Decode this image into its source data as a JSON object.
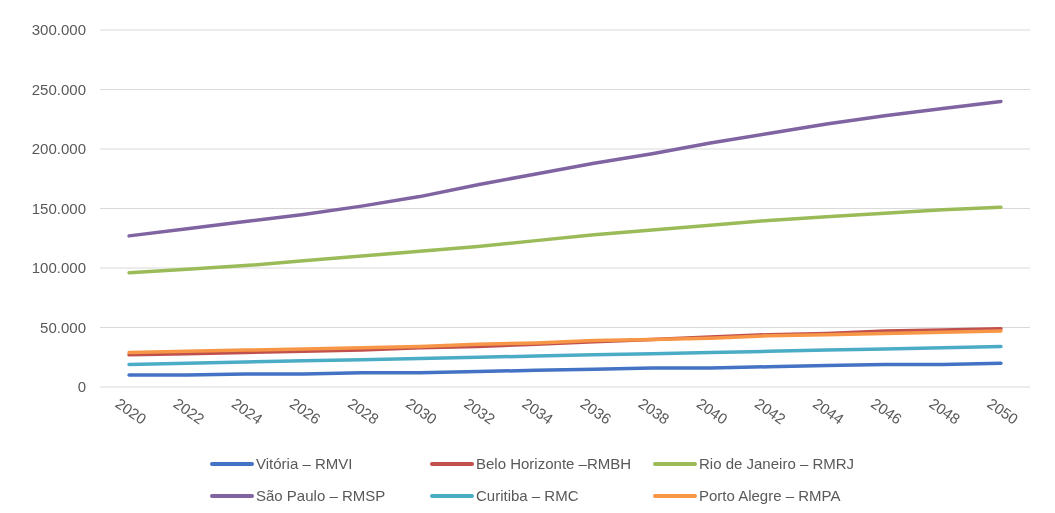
{
  "chart_data": {
    "type": "line",
    "x": [
      2020,
      2022,
      2024,
      2026,
      2028,
      2030,
      2032,
      2034,
      2036,
      2038,
      2040,
      2042,
      2044,
      2046,
      2048,
      2050
    ],
    "series": [
      {
        "name": "Vitória – RMVI",
        "color": "#4472c4",
        "values": [
          10000,
          10000,
          11000,
          11000,
          12000,
          12000,
          13000,
          14000,
          15000,
          16000,
          16000,
          17000,
          18000,
          19000,
          19000,
          20000
        ]
      },
      {
        "name": "Belo Horizonte –RMBH",
        "color": "#c0504d",
        "values": [
          27000,
          28000,
          29000,
          30000,
          31000,
          33000,
          34000,
          36000,
          38000,
          40000,
          42000,
          44000,
          45000,
          47000,
          48000,
          49000
        ]
      },
      {
        "name": "Rio de Janeiro – RMRJ",
        "color": "#9bbb59",
        "values": [
          96000,
          99000,
          102000,
          106000,
          110000,
          114000,
          118000,
          123000,
          128000,
          132000,
          136000,
          140000,
          143000,
          146000,
          149000,
          151000
        ]
      },
      {
        "name": "São Paulo – RMSP",
        "color": "#8064a2",
        "values": [
          127000,
          133000,
          139000,
          145000,
          152000,
          160000,
          170000,
          179000,
          188000,
          196000,
          205000,
          213000,
          221000,
          228000,
          234000,
          240000
        ]
      },
      {
        "name": "Curitiba – RMC",
        "color": "#4bacc6",
        "values": [
          19000,
          20000,
          21000,
          22000,
          23000,
          24000,
          25000,
          26000,
          27000,
          28000,
          29000,
          30000,
          31000,
          32000,
          33000,
          34000
        ]
      },
      {
        "name": "Porto Alegre – RMPA",
        "color": "#f79646",
        "values": [
          29000,
          30000,
          31000,
          32000,
          33000,
          34000,
          36000,
          37000,
          39000,
          40000,
          41000,
          43000,
          44000,
          45000,
          46000,
          47000
        ]
      }
    ],
    "xlim": [
      2019,
      2051
    ],
    "xticks": [
      2020,
      2022,
      2024,
      2026,
      2028,
      2030,
      2032,
      2034,
      2036,
      2038,
      2040,
      2042,
      2044,
      2046,
      2048,
      2050
    ],
    "ylim": [
      0,
      300000
    ],
    "yticks": [
      {
        "value": 0,
        "label": "0"
      },
      {
        "value": 50000,
        "label": "50.000"
      },
      {
        "value": 100000,
        "label": "100.000"
      },
      {
        "value": 150000,
        "label": "150.000"
      },
      {
        "value": 200000,
        "label": "200.000"
      },
      {
        "value": 250000,
        "label": "250.000"
      },
      {
        "value": 300000,
        "label": "300.000"
      }
    ],
    "grid": "y",
    "legend": "bottom",
    "marker": "none",
    "line_style": "solid"
  }
}
